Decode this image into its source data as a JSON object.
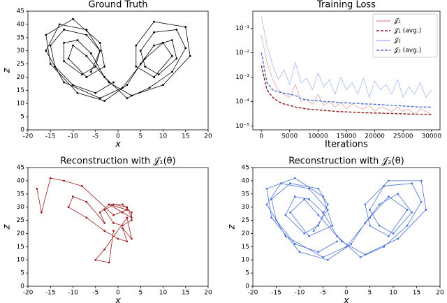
{
  "chart_data": [
    {
      "type": "line",
      "title": "Ground Truth",
      "x_label": "x",
      "y_label": "z",
      "color": "#000000",
      "markers": true,
      "xlim": [
        -20,
        20
      ],
      "xticks": [
        -20,
        -15,
        -10,
        -5,
        0,
        5,
        10,
        15,
        20
      ],
      "ylim": [
        0,
        45
      ],
      "yticks": [
        0,
        5,
        10,
        15,
        20,
        25,
        30,
        35,
        40,
        45
      ],
      "x": [
        -1,
        -5,
        -10,
        -14,
        -15,
        -12,
        -7,
        -4,
        -5,
        -8,
        -12,
        -12,
        -9,
        -6,
        -3,
        2,
        7,
        12,
        15,
        13,
        8,
        5,
        6,
        9,
        13,
        12,
        8,
        5,
        2,
        -3,
        -9,
        -15,
        -16,
        -10,
        -4,
        -3,
        -7,
        -11,
        -10,
        -7,
        -2,
        3,
        10,
        16,
        15,
        8,
        4,
        4,
        8,
        12,
        10,
        6,
        1,
        -4,
        -12,
        -16,
        -13,
        -7,
        -4,
        -6
      ],
      "values": [
        18,
        14,
        17,
        24,
        32,
        38,
        36,
        30,
        24,
        21,
        26,
        33,
        34,
        29,
        20,
        12,
        16,
        22,
        31,
        38,
        37,
        30,
        24,
        21,
        27,
        34,
        32,
        25,
        17,
        11,
        14,
        25,
        36,
        42,
        33,
        24,
        20,
        27,
        32,
        28,
        18,
        13,
        17,
        28,
        39,
        41,
        32,
        24,
        20,
        28,
        33,
        27,
        16,
        12,
        18,
        30,
        40,
        38,
        30,
        22
      ]
    },
    {
      "type": "line",
      "title": "Training Loss",
      "x_label": "Iterations",
      "log_y": true,
      "legend": "upper right",
      "xlim": [
        -1500,
        31500
      ],
      "xticks": [
        0,
        5000,
        10000,
        15000,
        20000,
        25000,
        30000
      ],
      "ylim": [
        7e-06,
        0.5
      ],
      "yticks": [
        {
          "value": 1e-05,
          "label": "10⁻⁵"
        },
        {
          "value": 0.0001,
          "label": "10⁻⁴"
        },
        {
          "value": 0.001,
          "label": "10⁻³"
        },
        {
          "value": 0.01,
          "label": "10⁻²"
        },
        {
          "value": 0.1,
          "label": "10⁻¹"
        }
      ],
      "x": [
        0,
        1000,
        2000,
        3000,
        4000,
        5000,
        6000,
        7000,
        8000,
        9000,
        10000,
        11000,
        12000,
        13000,
        14000,
        15000,
        16000,
        17000,
        18000,
        19000,
        20000,
        21000,
        22000,
        23000,
        24000,
        25000,
        26000,
        27000,
        28000,
        29000,
        30000
      ],
      "series": [
        {
          "name": "𝒥₁",
          "color": "#e8a0a0",
          "linestyle": "solid",
          "values": [
            0.05,
            0.004,
            0.0008,
            0.0003,
            0.0002,
            0.00015,
            0.0005,
            0.0001,
            0.00012,
            8e-05,
            0.0002,
            7e-05,
            0.0001,
            6e-05,
            9e-05,
            5e-05,
            8e-05,
            6e-05,
            5e-05,
            7e-05,
            4e-05,
            6e-05,
            5e-05,
            4e-05,
            6e-05,
            4e-05,
            5e-05,
            3e-05,
            5e-05,
            4e-05,
            3e-05
          ]
        },
        {
          "name": "𝒥₁ (avg.)",
          "color": "#8b1a1a",
          "linestyle": "dashed",
          "values": [
            0.003,
            0.0003,
            0.00015,
            0.0001,
            8e-05,
            7e-05,
            6e-05,
            5.5e-05,
            5e-05,
            4.8e-05,
            4.6e-05,
            4.4e-05,
            4.2e-05,
            4e-05,
            3.9e-05,
            3.8e-05,
            3.7e-05,
            3.6e-05,
            3.5e-05,
            3.5e-05,
            3.4e-05,
            3.4e-05,
            3.3e-05,
            3.3e-05,
            3.2e-05,
            3.2e-05,
            3.1e-05,
            3.1e-05,
            3e-05,
            3e-05,
            3e-05
          ]
        },
        {
          "name": "𝒥₂",
          "color": "#a8b8f0",
          "linestyle": "solid",
          "values": [
            0.3,
            0.02,
            0.003,
            0.0008,
            0.002,
            0.0005,
            0.004,
            0.0006,
            0.0009,
            0.0003,
            0.0015,
            0.0004,
            0.0008,
            0.0002,
            0.001,
            0.0003,
            0.0006,
            0.0002,
            0.0009,
            0.00015,
            0.0007,
            0.0003,
            0.0005,
            0.0002,
            0.0008,
            0.00015,
            0.0004,
            0.0002,
            0.0006,
            0.00015,
            0.0003
          ]
        },
        {
          "name": "𝒥₂ (avg.)",
          "color": "#4a6fd0",
          "linestyle": "dashed",
          "values": [
            0.01,
            0.0006,
            0.0003,
            0.00025,
            0.00022,
            0.0002,
            0.00018,
            0.00013,
            0.00012,
            0.00011,
            0.00011,
            0.0001,
            0.0001,
            9.5e-05,
            9e-05,
            9e-05,
            8.5e-05,
            8.5e-05,
            8e-05,
            8e-05,
            7.8e-05,
            7.5e-05,
            7.2e-05,
            7e-05,
            6.8e-05,
            6.6e-05,
            6.4e-05,
            6.2e-05,
            6e-05,
            6e-05,
            6e-05
          ]
        }
      ]
    },
    {
      "type": "line",
      "title": "Reconstruction with 𝒥₁(θ)",
      "x_label": "x",
      "y_label": "z",
      "color": "#9b1c1c",
      "markers": true,
      "xlim": [
        -20,
        20
      ],
      "xticks": [
        -20,
        -15,
        -10,
        -5,
        0,
        5,
        10,
        15,
        20
      ],
      "ylim": [
        0,
        45
      ],
      "yticks": [
        0,
        5,
        10,
        15,
        20,
        25,
        30,
        35,
        40,
        45
      ],
      "x": [
        -18,
        -17,
        -15,
        -12,
        -8,
        -1,
        2,
        -2,
        1,
        3,
        2,
        -1,
        -3,
        -1,
        1,
        3,
        3,
        1,
        -2,
        -4,
        -3,
        -7,
        -10,
        -11,
        -7,
        -3,
        0,
        2,
        1,
        3,
        2,
        -3,
        -5,
        -2,
        -1
      ],
      "values": [
        37,
        28,
        41,
        40,
        38,
        27,
        29,
        31,
        28,
        26,
        30,
        31,
        29,
        24,
        23,
        25,
        28,
        31,
        31,
        28,
        24,
        32,
        34,
        30,
        26,
        21,
        18,
        17,
        22,
        18,
        26,
        14,
        10,
        9,
        21
      ]
    },
    {
      "type": "line",
      "title": "Reconstruction with 𝒥₂(θ)",
      "x_label": "x",
      "y_label": "z",
      "color": "#4a72d8",
      "markers": true,
      "xlim": [
        -20,
        20
      ],
      "xticks": [
        -20,
        -15,
        -10,
        -5,
        0,
        5,
        10,
        15,
        20
      ],
      "ylim": [
        0,
        45
      ],
      "yticks": [
        0,
        5,
        10,
        15,
        20,
        25,
        30,
        35,
        40,
        45
      ],
      "x": [
        -2,
        -6,
        -11,
        -15,
        -16,
        -12,
        -6,
        -4,
        -6,
        -9,
        -13,
        -11,
        -8,
        -5,
        -2,
        3,
        8,
        13,
        16,
        14,
        8,
        5,
        7,
        10,
        14,
        11,
        7,
        4,
        1,
        -4,
        -10,
        -16,
        -17,
        -11,
        -5,
        -3,
        -8,
        -12,
        -9,
        -6,
        -1,
        4,
        11,
        17,
        16,
        9,
        4,
        5,
        9,
        13,
        9,
        5,
        0,
        -5,
        -13,
        -17,
        -14,
        -8,
        -4,
        -7
      ],
      "values": [
        17,
        13,
        16,
        25,
        33,
        39,
        37,
        31,
        23,
        20,
        27,
        34,
        33,
        28,
        19,
        11,
        15,
        23,
        32,
        39,
        38,
        29,
        23,
        20,
        28,
        35,
        31,
        24,
        16,
        10,
        13,
        26,
        37,
        41,
        34,
        23,
        19,
        28,
        33,
        27,
        17,
        12,
        18,
        29,
        40,
        40,
        31,
        23,
        19,
        29,
        34,
        26,
        15,
        11,
        19,
        31,
        39,
        37,
        29,
        21
      ]
    }
  ]
}
